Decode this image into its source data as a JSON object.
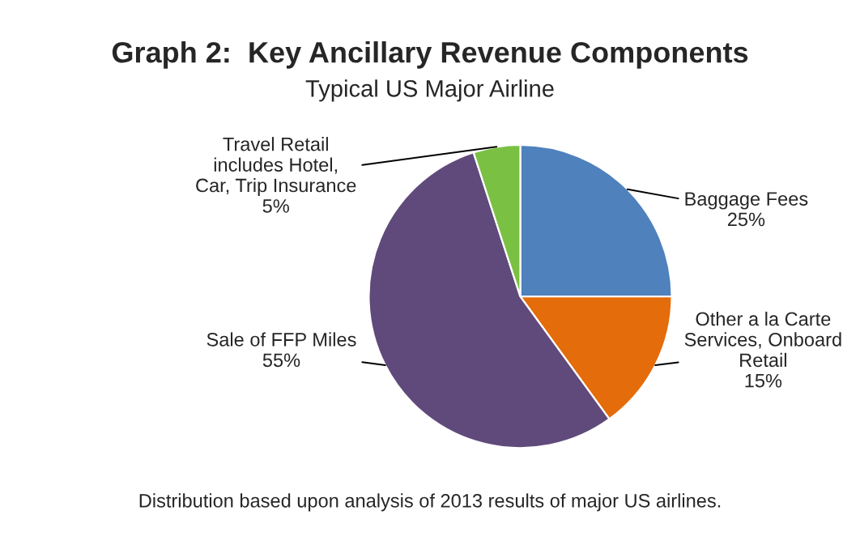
{
  "chart_data": {
    "type": "pie",
    "title": "Graph 2:  Key Ancillary Revenue Components",
    "subtitle": "Typical US Major Airline",
    "categories": [
      "Baggage Fees",
      "Other a la Carte\nServices, Onboard\nRetail",
      "Sale of FFP Miles",
      "Travel Retail\nincludes Hotel,\nCar, Trip Insurance"
    ],
    "values": [
      25,
      15,
      55,
      5
    ],
    "value_labels": [
      "25%",
      "15%",
      "55%",
      "5%"
    ],
    "colors": [
      "#4f81bd",
      "#e46c0a",
      "#604a7b",
      "#7ac143"
    ],
    "annotations": [
      "Distribution based upon analysis of 2013 results of major US airlines."
    ]
  }
}
